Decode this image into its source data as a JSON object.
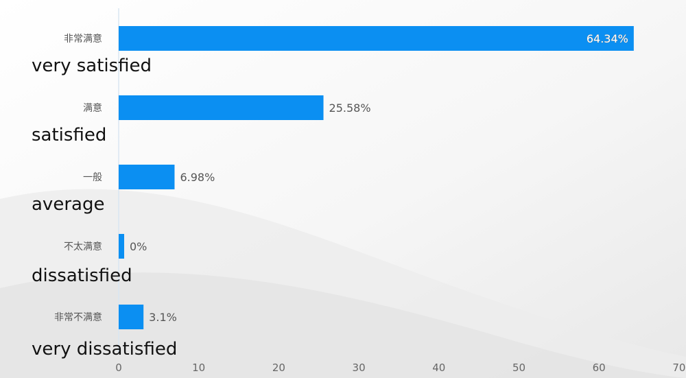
{
  "chart_data": {
    "type": "bar",
    "orientation": "horizontal",
    "categories": [
      "非常满意",
      "满意",
      "一般",
      "不太满意",
      "非常不满意"
    ],
    "annotations": [
      "very satisfied",
      "satisfied",
      "average",
      "dissatisfied",
      "very dissatisfied"
    ],
    "values": [
      64.34,
      25.58,
      6.98,
      0,
      3.1
    ],
    "data_labels": [
      "64.34%",
      "25.58%",
      "6.98%",
      "0%",
      "3.1%"
    ],
    "xlim": [
      0,
      70
    ],
    "x_ticks": [
      "0",
      "10",
      "20",
      "30",
      "40",
      "50",
      "60",
      "70"
    ],
    "grid": false,
    "legend": "none",
    "colors": {
      "bar": "#0b8ff2",
      "axis": "#d9e6f2",
      "background": "#f4f4f4"
    }
  }
}
